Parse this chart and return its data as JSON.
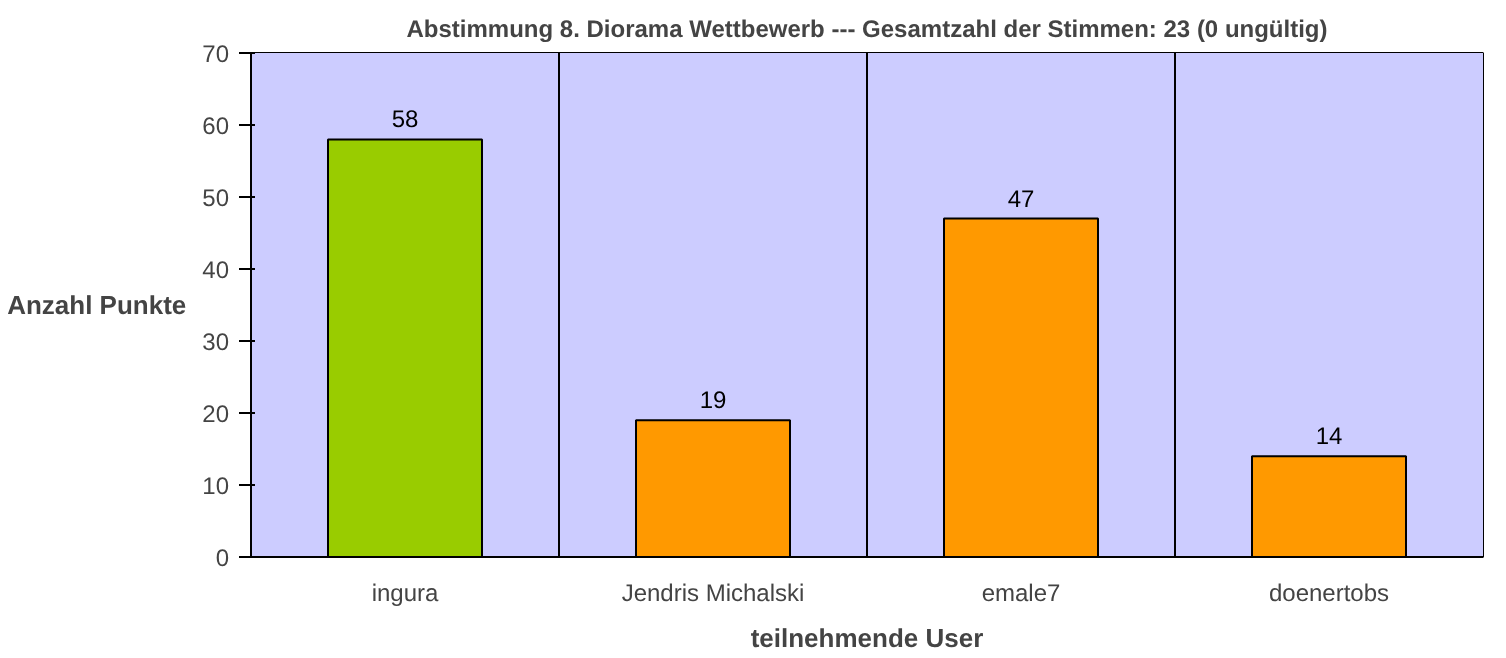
{
  "chart_data": {
    "type": "bar",
    "title": "Abstimmung 8. Diorama Wettbewerb --- Gesamtzahl der Stimmen: 23 (0 ungültig)",
    "categories": [
      "ingura",
      "Jendris Michalski",
      "emale7",
      "doenertobs"
    ],
    "values": [
      58,
      19,
      47,
      14
    ],
    "colors": [
      "#99cc00",
      "#ff9900",
      "#ff9900",
      "#ff9900"
    ],
    "xlabel": "teilnehmende User",
    "ylabel": "Anzahl Punkte",
    "ylim": [
      0,
      70
    ],
    "yticks": [
      0,
      10,
      20,
      30,
      40,
      50,
      60,
      70
    ],
    "grid": "x",
    "data_labels": true
  }
}
